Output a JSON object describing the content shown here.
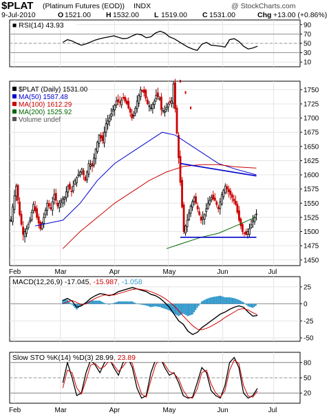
{
  "header": {
    "symbol": "$PLAT",
    "name": "(Platinum Futures (EOD))",
    "exchange": "INDX",
    "credit": "@ StockCharts.com",
    "date": "9-Jul-2010",
    "ohlc": [
      {
        "key": "O",
        "value": "1521.00"
      },
      {
        "key": "H",
        "value": "1532.00"
      },
      {
        "key": "L",
        "value": "1519.00"
      },
      {
        "key": "C",
        "value": "1531.00"
      }
    ],
    "chg_label": "Chg",
    "chg_value": "+13.00 (+0.86%)"
  },
  "colors": {
    "up": "#000000",
    "down": "#cc0000",
    "ma50": "#0000cc",
    "ma100": "#cc0000",
    "ma200": "#006600",
    "trend_blue": "#0000cc",
    "hist": "#3399cc",
    "grid": "#e4e4e4",
    "frame": "#000000"
  },
  "chart_data": [
    {
      "id": "rsi",
      "type": "line",
      "title": "RSI(14) 43.93",
      "ylim": [
        0,
        100
      ],
      "yticks": [
        "90",
        "70",
        "50",
        "30",
        "10"
      ],
      "reference_lines": [
        70,
        50,
        30
      ],
      "series": [
        {
          "name": "RSI(14)",
          "values": [
            52,
            58,
            55,
            50,
            46,
            49,
            53,
            57,
            60,
            62,
            64,
            66,
            63,
            60,
            61,
            66,
            70,
            68,
            62,
            64,
            72,
            76,
            72,
            64,
            60,
            54,
            48,
            42,
            38,
            35,
            48,
            52,
            46,
            45,
            44,
            42,
            58,
            60,
            54,
            44,
            38,
            40,
            43.93
          ]
        }
      ]
    },
    {
      "id": "price",
      "type": "candlestick",
      "legend": [
        {
          "label": "$PLAT (Daily) 1531.00",
          "color": "#000000"
        },
        {
          "label": "MA(50) 1587.48",
          "color": "#0000cc"
        },
        {
          "label": "MA(100) 1612.29",
          "color": "#cc0000"
        },
        {
          "label": "MA(200) 1525.92",
          "color": "#006600"
        },
        {
          "label": "Volume undef",
          "color": "#555555"
        }
      ],
      "ylim": [
        1440,
        1765
      ],
      "yticks": [
        "1750",
        "1725",
        "1700",
        "1675",
        "1650",
        "1625",
        "1600",
        "1575",
        "1550",
        "1525",
        "1500",
        "1475",
        "1450"
      ],
      "xticks": [
        {
          "label": "Feb",
          "bar": 4
        },
        {
          "label": "Mar",
          "bar": 57
        },
        {
          "label": "Apr",
          "bar": 120
        },
        {
          "label": "May",
          "bar": 182
        },
        {
          "label": "Jun",
          "bar": 245
        },
        {
          "label": "Jul",
          "bar": 304
        }
      ],
      "bars": 333,
      "close_anchors": [
        [
          0,
          1520
        ],
        [
          3,
          1555
        ],
        [
          6,
          1580
        ],
        [
          10,
          1530
        ],
        [
          14,
          1495
        ],
        [
          18,
          1505
        ],
        [
          22,
          1520
        ],
        [
          26,
          1548
        ],
        [
          30,
          1525
        ],
        [
          34,
          1505
        ],
        [
          38,
          1525
        ],
        [
          42,
          1550
        ],
        [
          46,
          1540
        ],
        [
          50,
          1565
        ],
        [
          54,
          1545
        ],
        [
          58,
          1555
        ],
        [
          62,
          1560
        ],
        [
          66,
          1580
        ],
        [
          70,
          1570
        ],
        [
          74,
          1590
        ],
        [
          78,
          1600
        ],
        [
          82,
          1610
        ],
        [
          86,
          1590
        ],
        [
          90,
          1620
        ],
        [
          94,
          1615
        ],
        [
          98,
          1645
        ],
        [
          102,
          1670
        ],
        [
          106,
          1660
        ],
        [
          110,
          1690
        ],
        [
          114,
          1700
        ],
        [
          118,
          1715
        ],
        [
          122,
          1730
        ],
        [
          126,
          1728
        ],
        [
          130,
          1735
        ],
        [
          134,
          1725
        ],
        [
          138,
          1710
        ],
        [
          140,
          1700
        ],
        [
          142,
          1705
        ],
        [
          146,
          1730
        ],
        [
          150,
          1750
        ],
        [
          154,
          1745
        ],
        [
          158,
          1725
        ],
        [
          162,
          1718
        ],
        [
          166,
          1730
        ],
        [
          168,
          1740
        ],
        [
          172,
          1735
        ],
        [
          174,
          1715
        ],
        [
          178,
          1712
        ],
        [
          182,
          1725
        ],
        [
          186,
          1730
        ],
        [
          188,
          1760
        ],
        [
          200,
          1500
        ],
        [
          204,
          1520
        ],
        [
          208,
          1545
        ],
        [
          212,
          1560
        ],
        [
          216,
          1540
        ],
        [
          220,
          1520
        ],
        [
          224,
          1530
        ],
        [
          228,
          1550
        ],
        [
          232,
          1560
        ],
        [
          236,
          1555
        ],
        [
          240,
          1540
        ],
        [
          244,
          1565
        ],
        [
          248,
          1580
        ],
        [
          252,
          1570
        ],
        [
          256,
          1560
        ],
        [
          260,
          1548
        ],
        [
          264,
          1520
        ],
        [
          268,
          1500
        ],
        [
          272,
          1495
        ],
        [
          276,
          1505
        ],
        [
          280,
          1520
        ],
        [
          284,
          1531
        ]
      ],
      "gap_markers": [
        [
          196,
          1765
        ],
        [
          202,
          1745
        ],
        [
          208,
          1718
        ]
      ],
      "ma50": [
        [
          28,
          1510
        ],
        [
          60,
          1520
        ],
        [
          80,
          1550
        ],
        [
          100,
          1590
        ],
        [
          120,
          1620
        ],
        [
          140,
          1640
        ],
        [
          160,
          1660
        ],
        [
          175,
          1675
        ],
        [
          190,
          1670
        ],
        [
          205,
          1655
        ],
        [
          220,
          1640
        ],
        [
          240,
          1620
        ],
        [
          260,
          1610
        ],
        [
          284,
          1600
        ]
      ],
      "ma100": [
        [
          60,
          1470
        ],
        [
          80,
          1500
        ],
        [
          100,
          1525
        ],
        [
          120,
          1550
        ],
        [
          140,
          1570
        ],
        [
          160,
          1590
        ],
        [
          180,
          1605
        ],
        [
          200,
          1615
        ],
        [
          220,
          1618
        ],
        [
          240,
          1618
        ],
        [
          260,
          1614
        ],
        [
          284,
          1612
        ]
      ],
      "ma200": [
        [
          180,
          1470
        ],
        [
          200,
          1480
        ],
        [
          220,
          1490
        ],
        [
          240,
          1497
        ],
        [
          260,
          1510
        ],
        [
          284,
          1526
        ]
      ],
      "trendlines": [
        {
          "from": [
            196,
            1620
          ],
          "to": [
            284,
            1598
          ],
          "color": "#0000cc"
        },
        {
          "from": [
            196,
            1490
          ],
          "to": [
            284,
            1490
          ],
          "color": "#0000cc"
        }
      ]
    },
    {
      "id": "macd",
      "type": "line",
      "title": "MACD(12,26,9) -17.045, -15.987, -1.058",
      "title_parts": [
        {
          "text": "MACD(12,26,9) -17.045",
          "color": "#000000"
        },
        {
          "text": ", -15.987",
          "color": "#cc0000"
        },
        {
          "text": ", -1.058",
          "color": "#3399cc"
        }
      ],
      "ylim": [
        -55,
        40
      ],
      "yticks": [
        "25",
        "0",
        "-25",
        "-50"
      ],
      "series": [
        {
          "name": "MACD",
          "values": [
            5,
            8,
            4,
            -5,
            -3,
            2,
            8,
            12,
            15,
            14,
            12,
            14,
            18,
            20,
            22,
            24,
            22,
            20,
            18,
            14,
            12,
            8,
            2,
            -5,
            -15,
            -25,
            -30,
            -40,
            -45,
            -42,
            -35,
            -30,
            -25,
            -20,
            -15,
            -12,
            -8,
            -5,
            -3,
            -5,
            -12,
            -18,
            -17.045
          ]
        },
        {
          "name": "Signal",
          "values": [
            0,
            3,
            5,
            2,
            -1,
            0,
            4,
            8,
            11,
            13,
            13,
            13,
            15,
            17,
            19,
            21,
            22,
            21,
            20,
            18,
            15,
            12,
            8,
            3,
            -3,
            -10,
            -18,
            -25,
            -32,
            -37,
            -38,
            -36,
            -33,
            -29,
            -25,
            -20,
            -16,
            -12,
            -8,
            -7,
            -9,
            -13,
            -15.987
          ]
        }
      ]
    },
    {
      "id": "sto",
      "type": "line",
      "title": "Slow STO %K(14) %D(3) 28.99, 23.89",
      "title_parts": [
        {
          "text": "Slow STO %K(14) %D(3) 28.99",
          "color": "#000000"
        },
        {
          "text": ", 23.89",
          "color": "#cc0000"
        }
      ],
      "ylim": [
        0,
        100
      ],
      "yticks": [
        "80",
        "50",
        "20"
      ],
      "reference_lines": [
        80,
        50,
        20
      ],
      "series": [
        {
          "name": "%K",
          "values": [
            40,
            80,
            50,
            15,
            20,
            60,
            85,
            75,
            60,
            80,
            88,
            70,
            55,
            80,
            90,
            70,
            30,
            10,
            15,
            60,
            85,
            90,
            70,
            55,
            60,
            40,
            15,
            10,
            12,
            40,
            70,
            60,
            25,
            15,
            10,
            35,
            80,
            90,
            70,
            20,
            10,
            15,
            28.99
          ]
        },
        {
          "name": "%D",
          "values": [
            30,
            65,
            60,
            30,
            18,
            45,
            75,
            78,
            68,
            72,
            84,
            75,
            62,
            72,
            85,
            78,
            45,
            18,
            12,
            45,
            75,
            88,
            76,
            62,
            58,
            48,
            25,
            12,
            10,
            28,
            60,
            65,
            38,
            20,
            12,
            25,
            65,
            85,
            78,
            35,
            14,
            12,
            23.89
          ]
        }
      ]
    }
  ],
  "bottom_axis": [
    "Feb",
    "Mar",
    "Apr",
    "May",
    "Jun",
    "Jul"
  ]
}
